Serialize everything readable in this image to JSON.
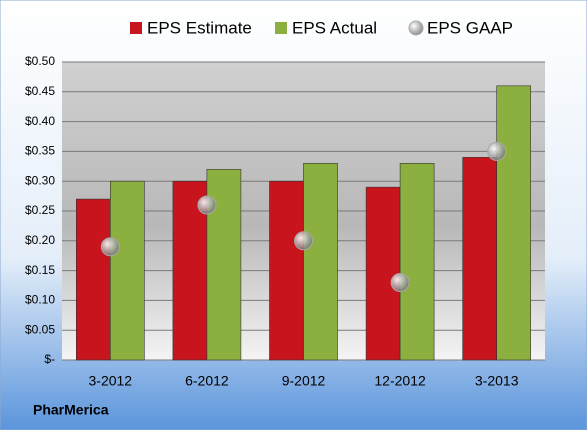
{
  "chart_data": {
    "type": "bar",
    "title": "PharMerica",
    "categories": [
      "3-2012",
      "6-2012",
      "9-2012",
      "12-2012",
      "3-2013"
    ],
    "series": [
      {
        "name": "EPS Estimate",
        "color": "#c8141c",
        "values": [
          0.27,
          0.3,
          0.3,
          0.29,
          0.34
        ]
      },
      {
        "name": "EPS Actual",
        "color": "#8cb040",
        "values": [
          0.3,
          0.32,
          0.33,
          0.33,
          0.46
        ]
      },
      {
        "name": "EPS GAAP",
        "color": "#a8a8a8",
        "type": "scatter",
        "values": [
          0.19,
          0.26,
          0.2,
          0.13,
          0.35
        ]
      }
    ],
    "ylim": [
      0,
      0.5
    ],
    "yticks": [
      {
        "value": 0,
        "label": "$-"
      },
      {
        "value": 0.05,
        "label": "$0.05"
      },
      {
        "value": 0.1,
        "label": "$0.10"
      },
      {
        "value": 0.15,
        "label": "$0.15"
      },
      {
        "value": 0.2,
        "label": "$0.20"
      },
      {
        "value": 0.25,
        "label": "$0.25"
      },
      {
        "value": 0.3,
        "label": "$0.30"
      },
      {
        "value": 0.35,
        "label": "$0.35"
      },
      {
        "value": 0.4,
        "label": "$0.40"
      },
      {
        "value": 0.45,
        "label": "$0.45"
      },
      {
        "value": 0.5,
        "label": "$0.50"
      }
    ],
    "grid": true
  }
}
